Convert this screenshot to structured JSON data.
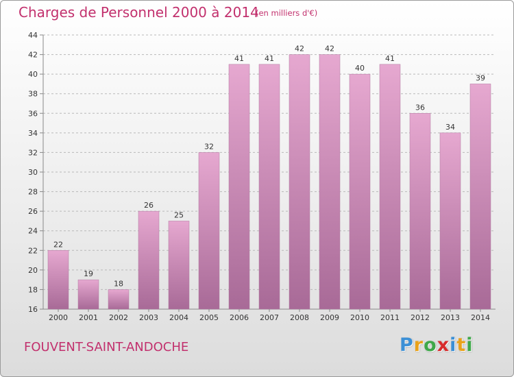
{
  "header": {
    "title": "Charges de Personnel 2000 à 2014",
    "subtitle": "(en milliers d'€)"
  },
  "footer": {
    "commune": "FOUVENT-SAINT-ANDOCHE",
    "brand_letters": [
      "P",
      "r",
      "o",
      "x",
      "i",
      "t",
      "i"
    ],
    "brand_colors": [
      "#3a8fd6",
      "#e9a21b",
      "#3fa84a",
      "#d72c2c",
      "#3a8fd6",
      "#e9a21b",
      "#3fa84a"
    ]
  },
  "colors": {
    "title": "#c2306d",
    "bar_top": "#e6a8d0",
    "bar_bottom": "#a86a97",
    "grid": "#b8b8b8",
    "axis_text": "#333333"
  },
  "chart_data": {
    "type": "bar",
    "categories": [
      "2000",
      "2001",
      "2002",
      "2003",
      "2004",
      "2005",
      "2006",
      "2007",
      "2008",
      "2009",
      "2010",
      "2011",
      "2012",
      "2013",
      "2014"
    ],
    "values": [
      22,
      19,
      18,
      26,
      25,
      32,
      41,
      41,
      42,
      42,
      40,
      41,
      36,
      34,
      39
    ],
    "data_labels": [
      "22",
      "19",
      "18",
      "26",
      "25",
      "32",
      "41",
      "41",
      "42",
      "42",
      "40",
      "41",
      "36",
      "34",
      "39"
    ],
    "yticks": [
      "16",
      "18",
      "20",
      "22",
      "24",
      "26",
      "28",
      "30",
      "32",
      "34",
      "36",
      "38",
      "40",
      "42",
      "44"
    ],
    "ylim": [
      16,
      44
    ],
    "title": "Charges de Personnel 2000 à 2014",
    "xlabel": "",
    "ylabel": "",
    "grid": true
  }
}
